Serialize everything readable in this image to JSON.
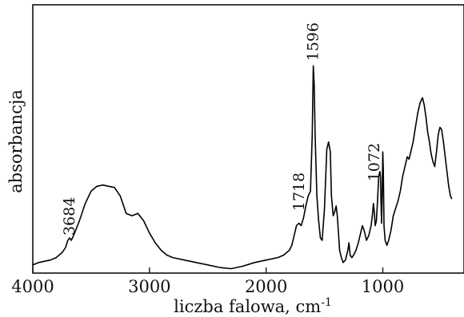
{
  "chart_data": {
    "type": "line",
    "title": "",
    "xlabel": "liczba falowa, cm",
    "xlabel_superscript": "-1",
    "ylabel": "absorbancja",
    "xlim": [
      4000,
      400
    ],
    "x_reversed": true,
    "ylim": [
      0,
      1
    ],
    "grid": false,
    "legend": "none",
    "line_color": "#000000",
    "x_ticks": [
      {
        "value": 4000,
        "label": "4000"
      },
      {
        "value": 3000,
        "label": "3000"
      },
      {
        "value": 2000,
        "label": "2000"
      },
      {
        "value": 1000,
        "label": "1000"
      }
    ],
    "annotations": [
      {
        "x": 3684,
        "y": 0.12,
        "label": "3684"
      },
      {
        "x": 1718,
        "y": 0.22,
        "label": "1718"
      },
      {
        "x": 1596,
        "y": 0.83,
        "label": "1596"
      },
      {
        "x": 1072,
        "y": 0.34,
        "label": "1072"
      }
    ],
    "series": [
      {
        "x": [
          4000,
          3950,
          3900,
          3850,
          3800,
          3750,
          3720,
          3700,
          3684,
          3670,
          3650,
          3600,
          3550,
          3500,
          3450,
          3400,
          3350,
          3300,
          3250,
          3200,
          3150,
          3100,
          3050,
          3000,
          2950,
          2900,
          2850,
          2800,
          2700,
          2600,
          2500,
          2400,
          2300,
          2200,
          2100,
          2000,
          1900,
          1850,
          1800,
          1780,
          1760,
          1740,
          1718,
          1700,
          1680,
          1660,
          1640,
          1620,
          1605,
          1596,
          1588,
          1580,
          1565,
          1550,
          1535,
          1520,
          1500,
          1480,
          1465,
          1450,
          1440,
          1425,
          1410,
          1400,
          1390,
          1380,
          1370,
          1355,
          1340,
          1320,
          1310,
          1300,
          1290,
          1280,
          1265,
          1250,
          1230,
          1210,
          1190,
          1175,
          1160,
          1140,
          1120,
          1100,
          1090,
          1080,
          1072,
          1065,
          1055,
          1045,
          1035,
          1025,
          1020,
          1015,
          1010,
          1005,
          1000,
          995,
          990,
          980,
          965,
          950,
          930,
          910,
          890,
          870,
          850,
          830,
          810,
          790,
          775,
          760,
          740,
          720,
          700,
          680,
          660,
          645,
          630,
          615,
          600,
          585,
          570,
          555,
          540,
          525,
          510,
          495,
          480,
          465,
          450,
          435,
          420,
          410
        ],
        "y": [
          0.02,
          0.03,
          0.035,
          0.04,
          0.05,
          0.07,
          0.09,
          0.12,
          0.13,
          0.12,
          0.14,
          0.2,
          0.27,
          0.32,
          0.34,
          0.345,
          0.34,
          0.335,
          0.3,
          0.23,
          0.22,
          0.23,
          0.2,
          0.15,
          0.11,
          0.08,
          0.06,
          0.05,
          0.04,
          0.03,
          0.02,
          0.01,
          0.005,
          0.015,
          0.03,
          0.04,
          0.05,
          0.06,
          0.08,
          0.1,
          0.14,
          0.18,
          0.19,
          0.18,
          0.21,
          0.26,
          0.3,
          0.32,
          0.55,
          0.83,
          0.75,
          0.55,
          0.3,
          0.2,
          0.13,
          0.12,
          0.25,
          0.49,
          0.52,
          0.48,
          0.3,
          0.22,
          0.24,
          0.26,
          0.22,
          0.15,
          0.08,
          0.05,
          0.03,
          0.04,
          0.06,
          0.08,
          0.11,
          0.06,
          0.05,
          0.06,
          0.08,
          0.11,
          0.15,
          0.18,
          0.16,
          0.12,
          0.14,
          0.18,
          0.22,
          0.27,
          0.23,
          0.18,
          0.2,
          0.28,
          0.38,
          0.4,
          0.38,
          0.27,
          0.19,
          0.32,
          0.48,
          0.4,
          0.18,
          0.12,
          0.1,
          0.12,
          0.16,
          0.22,
          0.25,
          0.28,
          0.32,
          0.38,
          0.42,
          0.46,
          0.45,
          0.48,
          0.52,
          0.58,
          0.64,
          0.68,
          0.7,
          0.67,
          0.62,
          0.56,
          0.52,
          0.47,
          0.44,
          0.42,
          0.48,
          0.55,
          0.58,
          0.57,
          0.52,
          0.46,
          0.4,
          0.34,
          0.3,
          0.29
        ]
      }
    ]
  }
}
